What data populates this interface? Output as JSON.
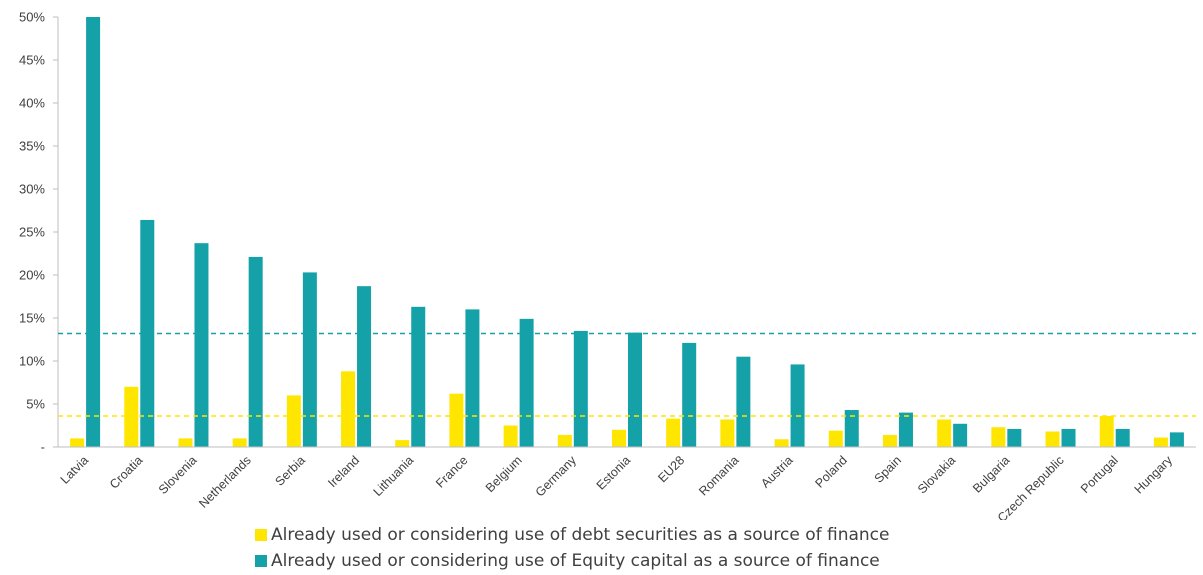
{
  "chart_data": {
    "type": "bar",
    "categories": [
      "Latvia",
      "Croatia",
      "Slovenia",
      "Netherlands",
      "Serbia",
      "Ireland",
      "Lithuania",
      "France",
      "Belgium",
      "Germany",
      "Estonia",
      "EU28",
      "Romania",
      "Austria",
      "Poland",
      "Spain",
      "Slovakia",
      "Bulgaria",
      "Czech Republic",
      "Portugal",
      "Hungary"
    ],
    "series": [
      {
        "name": "Already used or considering use of debt securities as a source of finance",
        "color": "#FFE600",
        "values": [
          1.0,
          7.0,
          1.0,
          1.0,
          6.0,
          8.8,
          0.8,
          6.2,
          2.5,
          1.4,
          2.0,
          3.3,
          3.2,
          0.9,
          1.9,
          1.4,
          3.2,
          2.3,
          1.8,
          3.6,
          1.1
        ]
      },
      {
        "name": "Already used or considering use of Equity capital as a source of finance",
        "color": "#14A1A8",
        "values": [
          50.0,
          26.4,
          23.7,
          22.1,
          20.3,
          18.7,
          16.3,
          16.0,
          14.9,
          13.5,
          13.3,
          12.1,
          10.5,
          9.6,
          4.3,
          4.0,
          2.7,
          2.1,
          2.1,
          2.1,
          1.7
        ]
      }
    ],
    "reference_lines": [
      {
        "series": "debt",
        "value": 3.6,
        "color": "#FFE600",
        "style": "dashed"
      },
      {
        "series": "equity",
        "value": 13.2,
        "color": "#14A1A8",
        "style": "dashed"
      }
    ],
    "y_ticks": [
      {
        "value": 0,
        "label": "-"
      },
      {
        "value": 5,
        "label": "5%"
      },
      {
        "value": 10,
        "label": "10%"
      },
      {
        "value": 15,
        "label": "15%"
      },
      {
        "value": 20,
        "label": "20%"
      },
      {
        "value": 25,
        "label": "25%"
      },
      {
        "value": 30,
        "label": "30%"
      },
      {
        "value": 35,
        "label": "35%"
      },
      {
        "value": 40,
        "label": "40%"
      },
      {
        "value": 45,
        "label": "45%"
      },
      {
        "value": 50,
        "label": "50%"
      }
    ],
    "ylim": [
      0,
      50
    ],
    "grid": false,
    "legend_position": "bottom"
  }
}
